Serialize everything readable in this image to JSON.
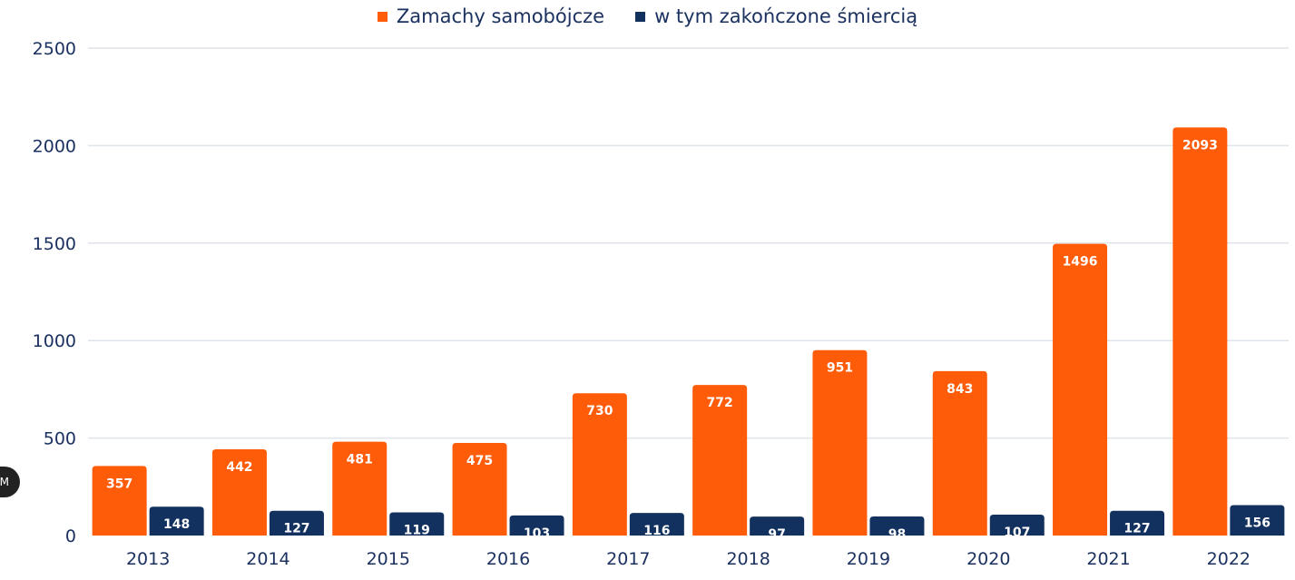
{
  "legend": {
    "series_1": "Zamachy samobójcze",
    "series_2": "w tym zakończone śmiercią"
  },
  "side_badge": "M",
  "colors": {
    "series_1": "#ff5c0a",
    "series_2": "#13315f",
    "grid": "#dfe3ea",
    "axis_text": "#1b3160"
  },
  "chart_data": {
    "type": "bar",
    "categories": [
      "2013",
      "2014",
      "2015",
      "2016",
      "2017",
      "2018",
      "2019",
      "2020",
      "2021",
      "2022"
    ],
    "series": [
      {
        "name": "Zamachy samobójcze",
        "values": [
          357,
          442,
          481,
          475,
          730,
          772,
          951,
          843,
          1496,
          2093
        ]
      },
      {
        "name": "w tym zakończone śmiercią",
        "values": [
          148,
          127,
          119,
          103,
          116,
          97,
          98,
          107,
          127,
          156
        ]
      }
    ],
    "ylim": [
      0,
      2500
    ],
    "yticks": [
      0,
      500,
      1000,
      1500,
      2000,
      2500
    ],
    "grid": true,
    "legend_position": "top-center",
    "data_labels": true
  }
}
